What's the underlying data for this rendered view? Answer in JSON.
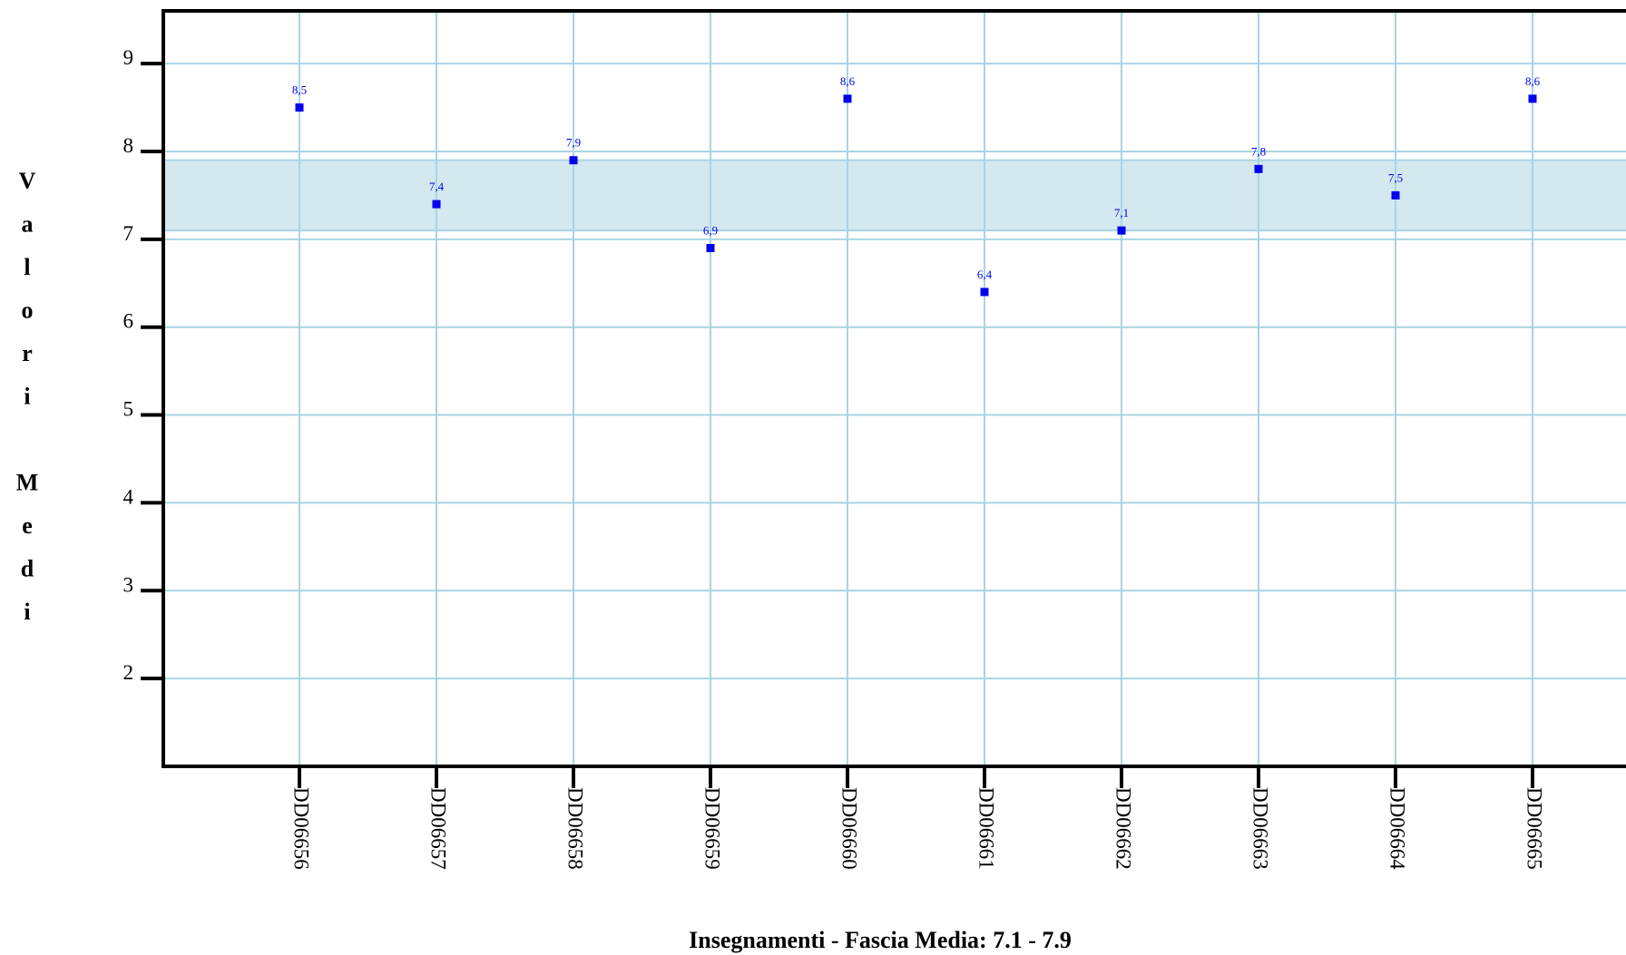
{
  "chart_data": {
    "type": "scatter",
    "xlabel": "Insegnamenti - Fascia Media: 7.1 - 7.9",
    "ylabel": "Valori Medi",
    "categories": [
      "DD06656",
      "DD06657",
      "DD06658",
      "DD06659",
      "DD06660",
      "DD06661",
      "DD06662",
      "DD06663",
      "DD06664",
      "DD06665"
    ],
    "values": [
      8.5,
      7.4,
      7.9,
      6.9,
      8.6,
      6.4,
      7.1,
      7.8,
      7.5,
      8.6
    ],
    "value_labels": [
      "8,5",
      "7,4",
      "7,9",
      "6,9",
      "8,6",
      "6,4",
      "7,1",
      "7,8",
      "7,5",
      "8,6"
    ],
    "y_ticks": [
      "2",
      "3",
      "4",
      "5",
      "6",
      "7",
      "8",
      "9"
    ],
    "ylim": [
      1,
      9.6
    ],
    "band": {
      "low": 7.1,
      "high": 7.9,
      "color": "#d4e8f0"
    },
    "grid": true,
    "colors": {
      "marker": "#0000ee",
      "grid": "#a8d4e4",
      "axis": "#000000"
    }
  }
}
